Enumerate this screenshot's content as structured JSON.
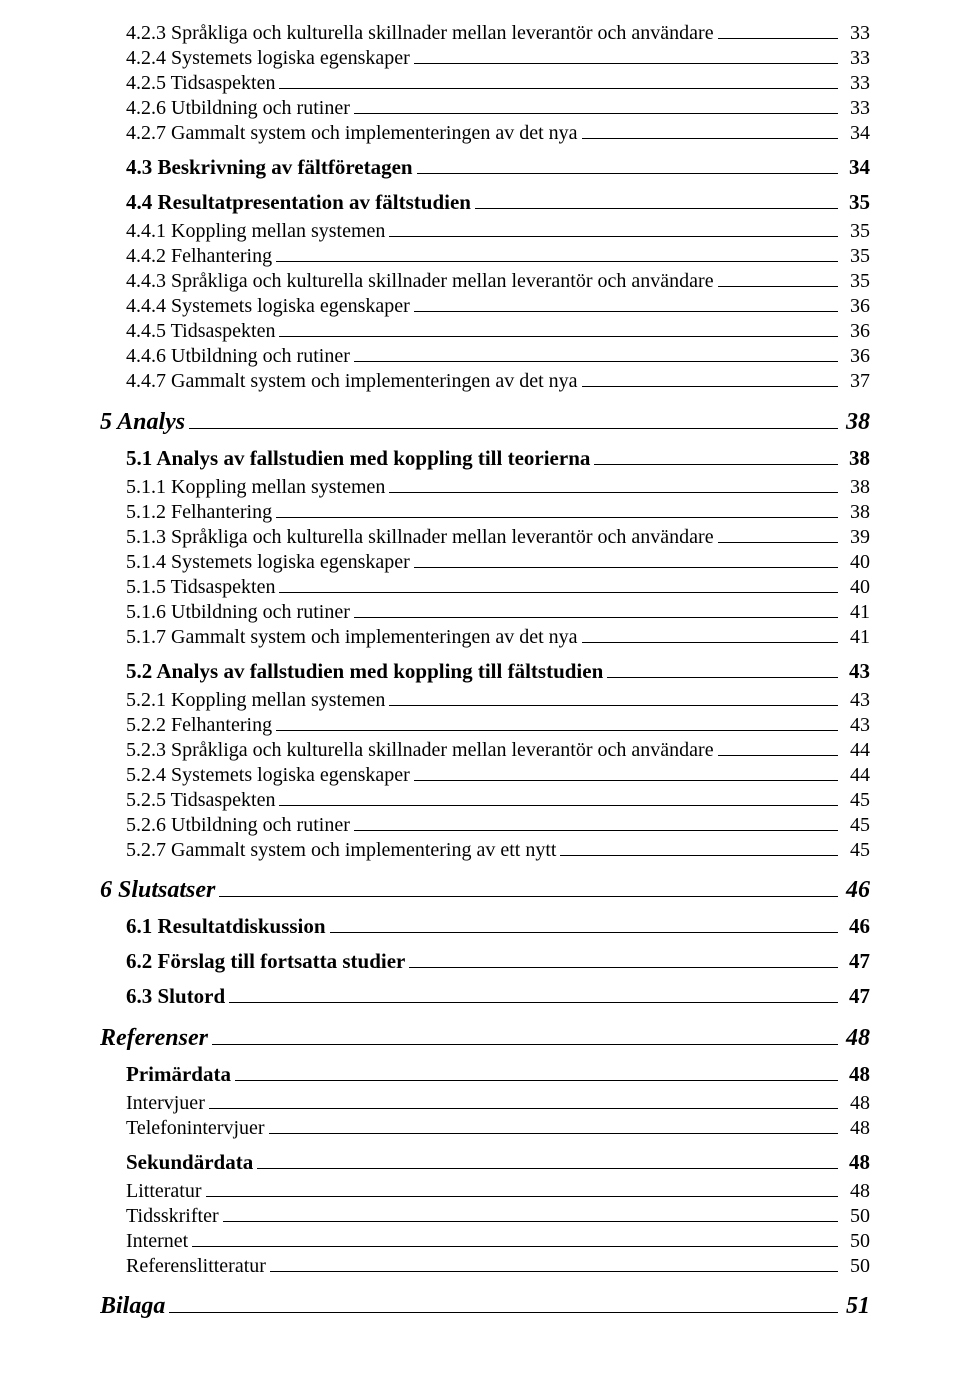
{
  "toc": [
    {
      "level": 3,
      "label": "4.2.3 Språkliga och kulturella skillnader mellan leverantör och användare",
      "page": "33"
    },
    {
      "level": 3,
      "label": "4.2.4 Systemets logiska egenskaper",
      "page": "33"
    },
    {
      "level": 3,
      "label": "4.2.5 Tidsaspekten",
      "page": "33"
    },
    {
      "level": 3,
      "label": "4.2.6 Utbildning och rutiner",
      "page": "33"
    },
    {
      "level": 3,
      "label": "4.2.7 Gammalt system och implementeringen av det nya",
      "page": "34"
    },
    {
      "level": 2,
      "label": "4.3 Beskrivning av fältföretagen",
      "page": "34"
    },
    {
      "level": 2,
      "label": "4.4 Resultatpresentation av fältstudien",
      "page": "35"
    },
    {
      "level": 3,
      "label": "4.4.1 Koppling mellan systemen",
      "page": "35"
    },
    {
      "level": 3,
      "label": "4.4.2 Felhantering",
      "page": "35"
    },
    {
      "level": 3,
      "label": "4.4.3 Språkliga och kulturella skillnader mellan leverantör och användare",
      "page": "35"
    },
    {
      "level": 3,
      "label": "4.4.4 Systemets logiska egenskaper",
      "page": "36"
    },
    {
      "level": 3,
      "label": "4.4.5 Tidsaspekten",
      "page": "36"
    },
    {
      "level": 3,
      "label": "4.4.6 Utbildning och rutiner",
      "page": "36"
    },
    {
      "level": 3,
      "label": "4.4.7 Gammalt system och implementeringen av det nya",
      "page": "37"
    },
    {
      "level": 1,
      "label": "5 Analys",
      "page": "38"
    },
    {
      "level": 2,
      "label": "5.1 Analys av fallstudien med koppling till teorierna",
      "page": "38"
    },
    {
      "level": 3,
      "label": "5.1.1 Koppling mellan systemen",
      "page": "38"
    },
    {
      "level": 3,
      "label": "5.1.2 Felhantering",
      "page": "38"
    },
    {
      "level": 3,
      "label": "5.1.3 Språkliga och kulturella skillnader mellan leverantör och användare",
      "page": "39"
    },
    {
      "level": 3,
      "label": "5.1.4 Systemets logiska egenskaper",
      "page": "40"
    },
    {
      "level": 3,
      "label": "5.1.5 Tidsaspekten",
      "page": "40"
    },
    {
      "level": 3,
      "label": "5.1.6 Utbildning och rutiner",
      "page": "41"
    },
    {
      "level": 3,
      "label": "5.1.7 Gammalt system och implementeringen av det nya",
      "page": "41"
    },
    {
      "level": 2,
      "label": "5.2 Analys av fallstudien med koppling till fältstudien",
      "page": "43"
    },
    {
      "level": 3,
      "label": "5.2.1 Koppling mellan systemen",
      "page": "43"
    },
    {
      "level": 3,
      "label": "5.2.2 Felhantering",
      "page": "43"
    },
    {
      "level": 3,
      "label": "5.2.3 Språkliga och kulturella skillnader mellan leverantör och användare",
      "page": "44"
    },
    {
      "level": 3,
      "label": "5.2.4 Systemets logiska egenskaper",
      "page": "44"
    },
    {
      "level": 3,
      "label": "5.2.5 Tidsaspekten",
      "page": "45"
    },
    {
      "level": 3,
      "label": "5.2.6 Utbildning och rutiner",
      "page": "45"
    },
    {
      "level": 3,
      "label": "5.2.7 Gammalt system och implementering av ett nytt",
      "page": "45"
    },
    {
      "level": 1,
      "label": "6 Slutsatser",
      "page": "46"
    },
    {
      "level": 2,
      "label": "6.1 Resultatdiskussion",
      "page": "46"
    },
    {
      "level": 2,
      "label": "6.2 Förslag till fortsatta studier",
      "page": "47"
    },
    {
      "level": 2,
      "label": "6.3 Slutord",
      "page": "47"
    },
    {
      "level": 1,
      "label": "Referenser",
      "page": "48"
    },
    {
      "level": 2,
      "label": "Primärdata",
      "page": "48"
    },
    {
      "level": 3,
      "label": "Intervjuer",
      "page": "48"
    },
    {
      "level": 3,
      "label": "Telefonintervjuer",
      "page": "48"
    },
    {
      "level": 2,
      "label": "Sekundärdata",
      "page": "48"
    },
    {
      "level": 3,
      "label": "Litteratur",
      "page": "48"
    },
    {
      "level": 3,
      "label": "Tidsskrifter",
      "page": "50"
    },
    {
      "level": 3,
      "label": "Internet",
      "page": "50"
    },
    {
      "level": 3,
      "label": "Referenslitteratur",
      "page": "50"
    },
    {
      "level": 1,
      "label": "Bilaga",
      "page": "51"
    }
  ]
}
